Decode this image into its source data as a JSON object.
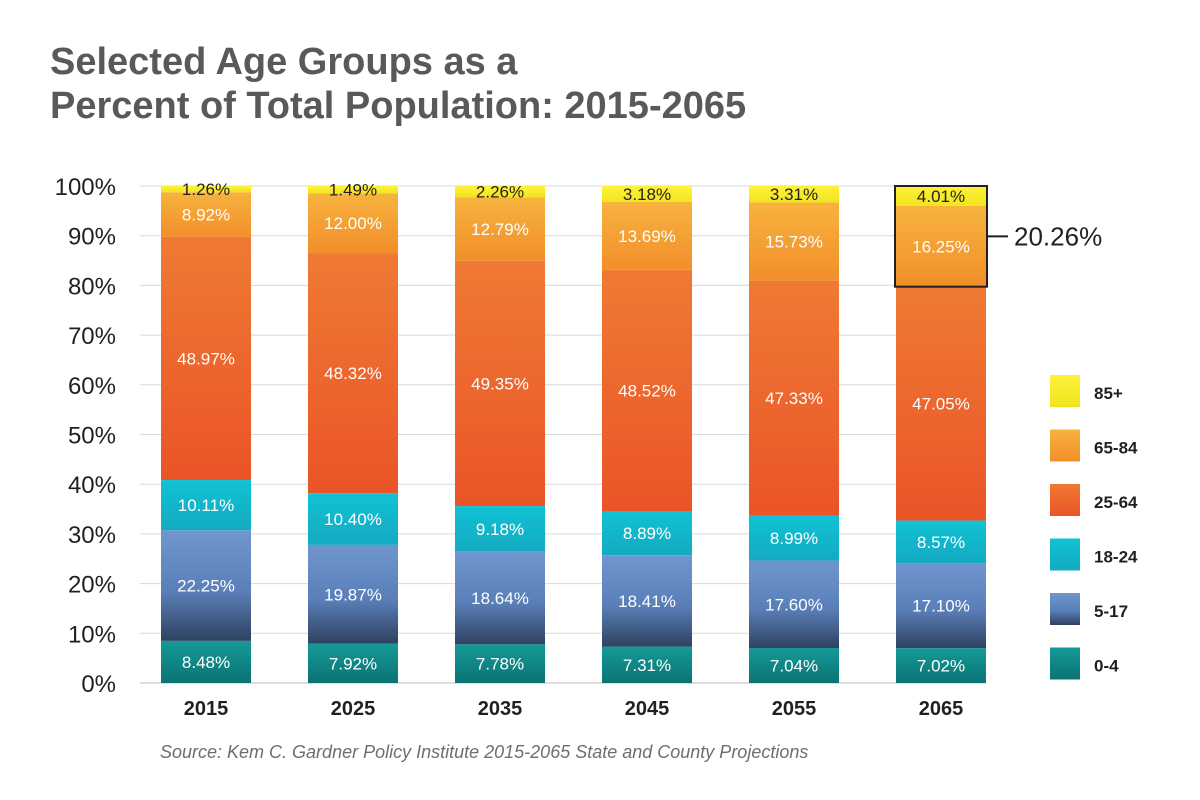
{
  "title_line1": "Selected Age Groups as a",
  "title_line2": "Percent of Total Population: 2015-2065",
  "source": "Source: Kem C. Gardner Policy Institute 2015-2065 State and County Projections",
  "callout": "20.26%",
  "chart_data": {
    "type": "bar",
    "stacked": true,
    "title": "Selected Age Groups as a Percent of Total Population: 2015-2065",
    "categories": [
      "2015",
      "2025",
      "2035",
      "2045",
      "2055",
      "2065"
    ],
    "ylim": [
      0,
      100
    ],
    "yticks": [
      0,
      10,
      20,
      30,
      40,
      50,
      60,
      70,
      80,
      90,
      100
    ],
    "ytick_labels": [
      "0%",
      "10%",
      "20%",
      "30%",
      "40%",
      "50%",
      "60%",
      "70%",
      "80%",
      "90%",
      "100%"
    ],
    "grid": true,
    "legend_position": "right",
    "series": [
      {
        "name": "0-4",
        "color": "#0e8c8c",
        "values": [
          8.48,
          7.92,
          7.78,
          7.31,
          7.04,
          7.02
        ],
        "labels": [
          "8.48%",
          "7.92%",
          "7.78%",
          "7.31%",
          "7.04%",
          "7.02%"
        ]
      },
      {
        "name": "5-17",
        "color": "#6a8fc9",
        "values": [
          22.25,
          19.87,
          18.64,
          18.41,
          17.6,
          17.1
        ],
        "labels": [
          "22.25%",
          "19.87%",
          "18.64%",
          "18.41%",
          "17.60%",
          "17.10%"
        ]
      },
      {
        "name": "18-24",
        "color": "#1bb8cc",
        "values": [
          10.11,
          10.4,
          9.18,
          8.89,
          8.99,
          8.57
        ],
        "labels": [
          "10.11%",
          "10.40%",
          "9.18%",
          "8.89%",
          "8.99%",
          "8.57%"
        ]
      },
      {
        "name": "25-64",
        "color": "#ef6c30",
        "values": [
          48.97,
          48.32,
          49.35,
          48.52,
          47.33,
          47.05
        ],
        "labels": [
          "48.97%",
          "48.32%",
          "49.35%",
          "48.52%",
          "47.33%",
          "47.05%"
        ]
      },
      {
        "name": "65-84",
        "color": "#f5a233",
        "values": [
          8.92,
          12.0,
          12.79,
          13.69,
          15.73,
          16.25
        ],
        "labels": [
          "8.92%",
          "12.00%",
          "12.79%",
          "13.69%",
          "15.73%",
          "16.25%"
        ]
      },
      {
        "name": "85+",
        "color": "#f5ec2c",
        "values": [
          1.26,
          1.49,
          2.26,
          3.18,
          3.31,
          4.01
        ],
        "labels": [
          "1.26%",
          "1.49%",
          "2.26%",
          "3.18%",
          "3.31%",
          "4.01%"
        ]
      }
    ],
    "highlight": {
      "category": "2065",
      "series": [
        "65-84",
        "85+"
      ],
      "label": "20.26%"
    }
  }
}
